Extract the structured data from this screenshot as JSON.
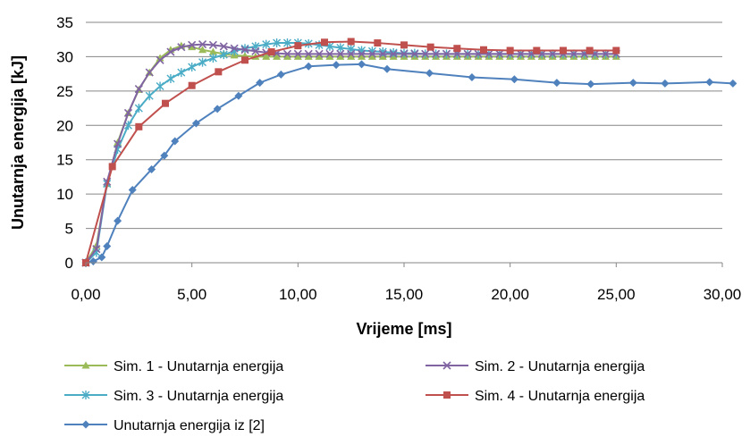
{
  "chart_data": {
    "type": "line",
    "xlabel": "Vrijeme [ms]",
    "ylabel": "Unutarnja energija [kJ]",
    "xlim": [
      0,
      30
    ],
    "ylim": [
      0,
      35
    ],
    "x_ticks": [
      0,
      5,
      10,
      15,
      20,
      25,
      30
    ],
    "y_ticks": [
      0,
      5,
      10,
      15,
      20,
      25,
      30,
      35
    ],
    "x_tick_labels": [
      "0,00",
      "5,00",
      "10,00",
      "15,00",
      "20,00",
      "25,00",
      "30,00"
    ],
    "y_tick_labels": [
      "0",
      "5",
      "10",
      "15",
      "20",
      "25",
      "30",
      "35"
    ],
    "grid": "horizontal",
    "legend_position": "bottom",
    "series": [
      {
        "name": "Sim. 1 - Unutarnja energija",
        "color": "#9BBB59",
        "marker": "triangle",
        "x": [
          0,
          0.5,
          1.0,
          1.5,
          2.0,
          2.5,
          3.0,
          3.5,
          4.0,
          4.5,
          5.0,
          5.5,
          6.0,
          6.5,
          7.0,
          7.5,
          8.0,
          8.5,
          9.0,
          9.5,
          10.0,
          10.5,
          11.0,
          11.5,
          12.0,
          12.5,
          13.0,
          13.5,
          14.0,
          14.5,
          15.0,
          15.5,
          16.0,
          16.5,
          17.0,
          17.5,
          18.0,
          18.5,
          19.0,
          19.5,
          20.0,
          20.5,
          21.0,
          21.5,
          22.0,
          22.5,
          23.0,
          23.5,
          24.0,
          24.5,
          25.0
        ],
        "values": [
          0,
          2.5,
          11.5,
          17.5,
          21.8,
          25.2,
          27.7,
          29.8,
          31.0,
          31.6,
          31.4,
          31.0,
          30.7,
          30.4,
          30.2,
          30.1,
          30.0,
          30.0,
          30.0,
          30.0,
          30.0,
          30.0,
          30.0,
          30.0,
          30.0,
          30.0,
          30.0,
          30.0,
          30.0,
          30.0,
          30.0,
          30.0,
          30.0,
          30.0,
          30.0,
          30.0,
          30.0,
          30.0,
          30.0,
          30.0,
          30.0,
          30.0,
          30.0,
          30.0,
          30.0,
          30.0,
          30.0,
          30.0,
          30.0,
          30.0,
          30.0
        ]
      },
      {
        "name": "Sim. 2 - Unutarnja energija",
        "color": "#8064A2",
        "marker": "x",
        "x": [
          0,
          0.5,
          1.0,
          1.5,
          2.0,
          2.5,
          3.0,
          3.5,
          4.0,
          4.5,
          5.0,
          5.5,
          6.0,
          6.5,
          7.0,
          7.5,
          8.0,
          8.5,
          9.0,
          9.5,
          10.0,
          10.5,
          11.0,
          11.5,
          12.0,
          12.5,
          13.0,
          13.5,
          14.0,
          14.5,
          15.0,
          15.5,
          16.0,
          16.5,
          17.0,
          17.5,
          18.0,
          18.5,
          19.0,
          19.5,
          20.0,
          20.5,
          21.0,
          21.5,
          22.0,
          22.5,
          23.0,
          23.5,
          24.0,
          24.5,
          25.0
        ],
        "values": [
          0,
          2.0,
          11.8,
          17.3,
          21.8,
          25.3,
          27.7,
          29.5,
          30.7,
          31.4,
          31.7,
          31.8,
          31.7,
          31.5,
          31.2,
          31.0,
          30.8,
          30.6,
          30.5,
          30.4,
          30.4,
          30.4,
          30.4,
          30.4,
          30.4,
          30.4,
          30.4,
          30.4,
          30.4,
          30.4,
          30.4,
          30.4,
          30.4,
          30.4,
          30.4,
          30.4,
          30.4,
          30.4,
          30.4,
          30.4,
          30.4,
          30.4,
          30.4,
          30.4,
          30.4,
          30.4,
          30.4,
          30.4,
          30.4,
          30.4,
          30.4
        ]
      },
      {
        "name": "Sim. 3 - Unutarnja energija",
        "color": "#4BACC6",
        "marker": "asterisk",
        "x": [
          0,
          0.5,
          1.0,
          1.5,
          2.0,
          2.5,
          3.0,
          3.5,
          4.0,
          4.5,
          5.0,
          5.5,
          6.0,
          6.5,
          7.0,
          7.5,
          8.0,
          8.5,
          9.0,
          9.5,
          10.0,
          10.5,
          11.0,
          11.5,
          12.0,
          12.5,
          13.0,
          13.5,
          14.0,
          14.5,
          15.0,
          15.5,
          16.0,
          16.5,
          17.0,
          17.5,
          18.0,
          18.5,
          19.0,
          19.5,
          20.0,
          20.5,
          21.0,
          21.5,
          22.0,
          22.5,
          23.0,
          23.5,
          24.0,
          24.5,
          25.0
        ],
        "values": [
          0,
          1.5,
          11.5,
          16.5,
          20.0,
          22.5,
          24.3,
          25.7,
          26.8,
          27.7,
          28.5,
          29.2,
          29.8,
          30.3,
          30.8,
          31.2,
          31.5,
          31.8,
          32.0,
          32.0,
          32.0,
          31.9,
          31.7,
          31.5,
          31.3,
          31.1,
          30.9,
          30.8,
          30.7,
          30.6,
          30.5,
          30.5,
          30.4,
          30.4,
          30.4,
          30.4,
          30.4,
          30.4,
          30.4,
          30.4,
          30.4,
          30.4,
          30.4,
          30.4,
          30.4,
          30.4,
          30.4,
          30.4,
          30.4,
          30.4,
          30.4
        ]
      },
      {
        "name": "Sim. 4 - Unutarnja energija",
        "color": "#C0504D",
        "marker": "square",
        "x": [
          0,
          1.25,
          2.5,
          3.75,
          5.0,
          6.25,
          7.5,
          8.75,
          10.0,
          11.25,
          12.5,
          13.75,
          15.0,
          16.25,
          17.5,
          18.75,
          20.0,
          21.25,
          22.5,
          23.75,
          25.0
        ],
        "values": [
          0,
          14.0,
          19.8,
          23.2,
          25.8,
          27.8,
          29.5,
          30.7,
          31.6,
          32.1,
          32.2,
          32.0,
          31.7,
          31.4,
          31.2,
          31.0,
          30.9,
          30.9,
          30.9,
          30.9,
          30.9
        ]
      },
      {
        "name": "Unutarnja energija iz [2]",
        "color": "#4F81BD",
        "marker": "diamond",
        "x": [
          0,
          0.35,
          0.75,
          1.0,
          1.5,
          2.2,
          3.1,
          3.7,
          4.2,
          5.2,
          6.2,
          7.2,
          8.2,
          9.2,
          10.5,
          11.8,
          13.0,
          14.2,
          16.2,
          18.2,
          20.2,
          22.2,
          23.8,
          25.8,
          27.3,
          29.4,
          30.5
        ],
        "values": [
          0,
          0.2,
          0.8,
          2.4,
          6.1,
          10.6,
          13.6,
          15.6,
          17.7,
          20.3,
          22.4,
          24.3,
          26.2,
          27.4,
          28.6,
          28.8,
          28.9,
          28.2,
          27.6,
          27.0,
          26.7,
          26.2,
          26.0,
          26.2,
          26.1,
          26.3,
          26.1
        ]
      }
    ]
  }
}
